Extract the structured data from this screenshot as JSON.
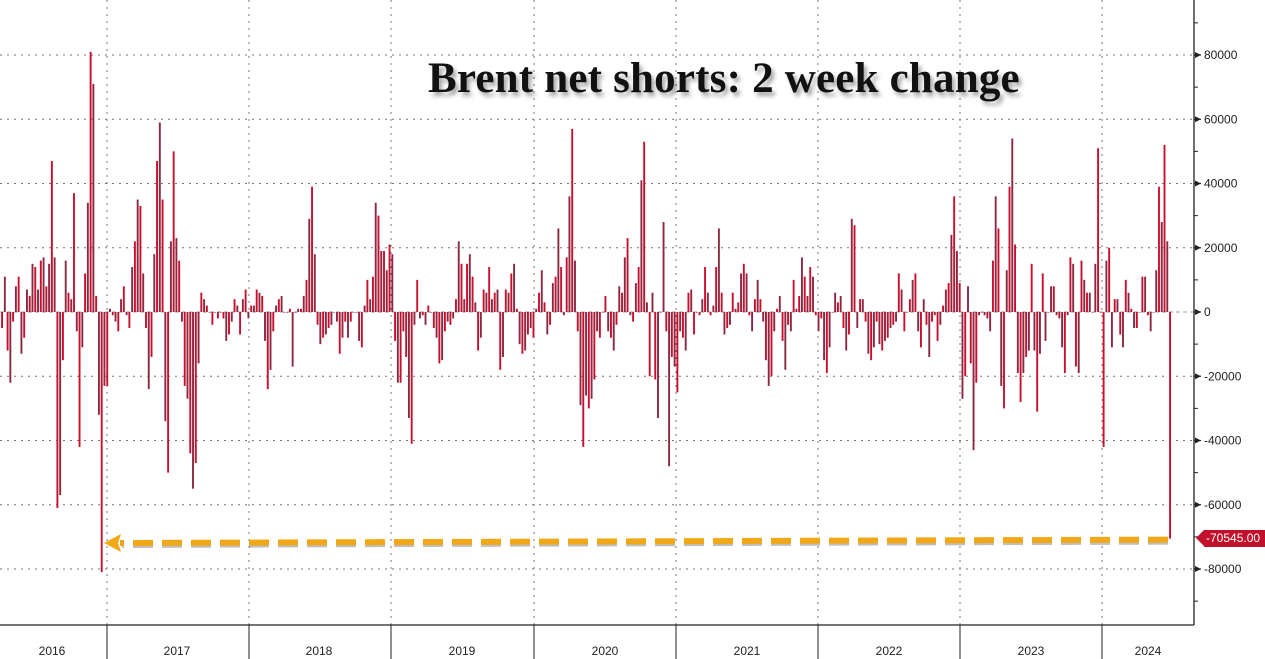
{
  "chart_data": {
    "type": "bar",
    "title": "Brent net shorts: 2 week change",
    "xlabel": "",
    "ylabel": "",
    "x_tick_labels": [
      "2016",
      "2017",
      "2018",
      "2019",
      "2020",
      "2021",
      "2022",
      "2023",
      "2024"
    ],
    "y_ticks": [
      80000,
      60000,
      40000,
      20000,
      0,
      -20000,
      -40000,
      -60000,
      -80000
    ],
    "y_tick_labels": [
      "80000",
      "60000",
      "40000",
      "20000",
      "0",
      "-20000",
      "-40000",
      "-60000",
      "-80000"
    ],
    "ylim": [
      -97000,
      97000
    ],
    "grid": true,
    "value_scale": 1000,
    "values_k": [
      -5,
      11,
      -12,
      -22,
      -3,
      8,
      11,
      -13,
      -8,
      7,
      5,
      15,
      14,
      7,
      16,
      17,
      8,
      15,
      47,
      17,
      -61,
      -57,
      -15,
      16,
      6,
      4,
      37,
      -6,
      -42,
      -11,
      12,
      34,
      81,
      71,
      5,
      -32,
      -81,
      -23,
      -23,
      1,
      -1,
      -3,
      -6,
      4,
      8,
      -1,
      -5,
      14,
      22,
      35,
      33,
      12,
      -5,
      -24,
      -14,
      18,
      47,
      59,
      35,
      -34,
      -50,
      22,
      50,
      23,
      16,
      -3,
      -23,
      -27,
      -44,
      -55,
      -47,
      -16,
      6,
      4,
      2,
      0,
      -4,
      0,
      -2,
      0,
      -2,
      -9,
      -7,
      -3,
      4,
      2,
      -7,
      4,
      7,
      -2,
      2,
      2,
      7,
      6,
      5,
      -9,
      -24,
      -18,
      -6,
      2,
      4,
      5,
      0,
      0,
      1,
      -17,
      0,
      1,
      1,
      5,
      10,
      29,
      39,
      18,
      -4,
      -10,
      -8,
      -7,
      -5,
      -4,
      0,
      -3,
      -13,
      -8,
      -3,
      -8,
      -3,
      0,
      0,
      -9,
      -11,
      2,
      10,
      4,
      11,
      34,
      30,
      19,
      19,
      13,
      21,
      18,
      -9,
      -22,
      -22,
      -6,
      -14,
      -33,
      -41,
      -4,
      10,
      -2,
      -1,
      -4,
      2,
      0,
      -5,
      -8,
      -16,
      -15,
      -6,
      -3,
      -4,
      -2,
      4,
      22,
      15,
      4,
      15,
      18,
      11,
      3,
      -12,
      -8,
      7,
      6,
      14,
      4,
      6,
      7,
      -18,
      -14,
      7,
      6,
      12,
      15,
      1,
      -10,
      -13,
      -12,
      -7,
      -5,
      -8,
      1,
      6,
      13,
      3,
      -7,
      -4,
      9,
      11,
      26,
      14,
      -1,
      17,
      36,
      57,
      16,
      -6,
      -29,
      -42,
      -26,
      -30,
      -27,
      -21,
      -6,
      -8,
      0,
      5,
      -6,
      -8,
      -12,
      -4,
      8,
      6,
      17,
      23,
      -1,
      -3,
      9,
      14,
      41,
      53,
      3,
      -20,
      6,
      -21,
      -33,
      0,
      28,
      -6,
      -48,
      -14,
      -17,
      -25,
      -6,
      -8,
      -12,
      6,
      7,
      -7,
      0,
      -1,
      4,
      14,
      6,
      -1,
      2,
      14,
      26,
      6,
      -7,
      -5,
      -4,
      6,
      1,
      3,
      12,
      15,
      12,
      -1,
      -6,
      4,
      10,
      4,
      -3,
      -15,
      -23,
      -20,
      -6,
      1,
      5,
      -9,
      -18,
      -4,
      -6,
      10,
      1,
      5,
      17,
      11,
      5,
      14,
      11,
      -1,
      -6,
      -2,
      -15,
      -19,
      -11,
      0,
      6,
      3,
      5,
      -5,
      -12,
      -7,
      29,
      27,
      -5,
      4,
      4,
      -3,
      -13,
      -15,
      -11,
      -3,
      -10,
      -12,
      -9,
      -8,
      -5,
      -4,
      -3,
      12,
      7,
      -6,
      0,
      4,
      10,
      12,
      -6,
      -11,
      4,
      -4,
      -14,
      -3,
      -1,
      -9,
      -4,
      2,
      7,
      9,
      24,
      36,
      19,
      9,
      -27,
      -20,
      8,
      -16,
      -43,
      -22,
      -1,
      0,
      -1,
      -2,
      -6,
      16,
      36,
      26,
      -23,
      -30,
      13,
      39,
      54,
      21,
      -19,
      -28,
      -19,
      -14,
      -12,
      15,
      -12,
      -31,
      -13,
      12,
      -9,
      0,
      8,
      8,
      -1,
      -2,
      -11,
      -19,
      -1,
      17,
      15,
      -17,
      -19,
      16,
      10,
      6,
      6,
      0,
      15,
      51,
      0,
      -42,
      16,
      20,
      -11,
      4,
      4,
      -7,
      -11,
      10,
      6,
      1,
      -5,
      -5,
      0,
      11,
      11,
      -1,
      -6,
      0,
      13,
      39,
      28,
      52,
      22,
      -70.545
    ],
    "last_value": -70545,
    "last_value_label": "-70545.00",
    "annotation": "dashed orange arrow from latest value back to 2016 low",
    "colors": {
      "bar_a": "#c8102e",
      "bar_b": "#8b2942",
      "arrow": "#f0a818",
      "last_label_bg": "#c0102c"
    }
  }
}
